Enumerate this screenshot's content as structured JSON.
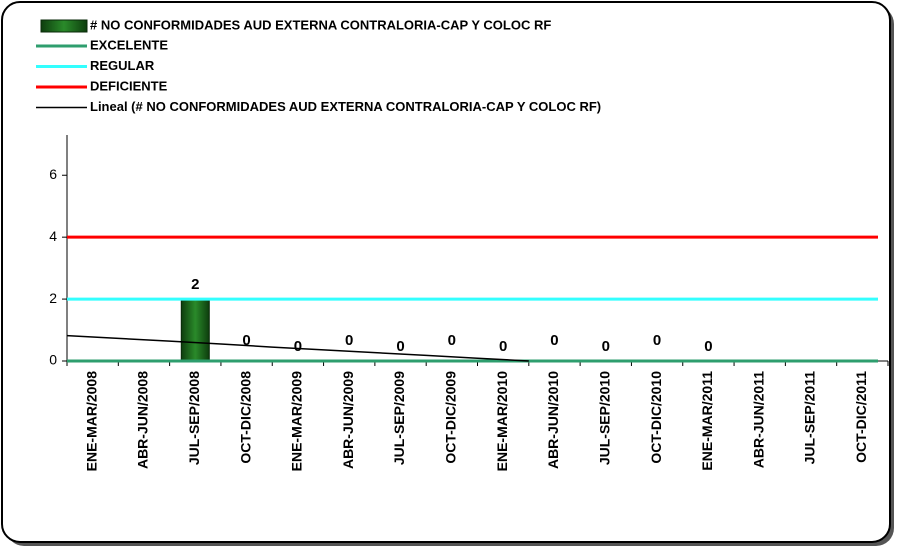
{
  "chart_data": {
    "type": "bar",
    "categories": [
      "ENE-MAR/2008",
      "ABR-JUN/2008",
      "JUL-SEP/2008",
      "OCT-DIC/2008",
      "ENE-MAR/2009",
      "ABR-JUN/2009",
      "JUL-SEP/2009",
      "OCT-DIC/2009",
      "ENE-MAR/2010",
      "ABR-JUN/2010",
      "JUL-SEP/2010",
      "OCT-DIC/2010",
      "ENE-MAR/2011",
      "ABR-JUN/2011",
      "JUL-SEP/2011",
      "OCT-DIC/2011"
    ],
    "bar_series": {
      "name": "# NO CONFORMIDADES AUD EXTERNA CONTRALORIA-CAP Y COLOC RF",
      "color": "#1f6b1f",
      "values": [
        null,
        null,
        2,
        0,
        0,
        0,
        0,
        0,
        0,
        0,
        0,
        0,
        0,
        null,
        null,
        null
      ]
    },
    "series": [
      {
        "name": "EXCELENTE",
        "color": "#2e9e6e",
        "values": [
          0,
          0,
          0,
          0,
          0,
          0,
          0,
          0,
          0,
          0,
          0,
          0,
          0,
          0,
          0,
          0
        ]
      },
      {
        "name": "REGULAR",
        "color": "#33ffff",
        "values": [
          2,
          2,
          2,
          2,
          2,
          2,
          2,
          2,
          2,
          2,
          2,
          2,
          2,
          2,
          2,
          2
        ]
      },
      {
        "name": "DEFICIENTE",
        "color": "#ff0000",
        "values": [
          4,
          4,
          4,
          4,
          4,
          4,
          4,
          4,
          4,
          4,
          4,
          4,
          4,
          4,
          4,
          4
        ]
      },
      {
        "name": "Lineal (# NO CONFORMIDADES AUD EXTERNA CONTRALORIA-CAP Y COLOC RF)",
        "color": "#000000",
        "values": [
          0.82,
          0.73,
          0.64,
          0.55,
          0.45,
          0.36,
          0.27,
          0.18,
          0.09,
          0,
          null,
          null,
          null,
          null,
          null,
          null
        ]
      }
    ],
    "ylim": [
      0,
      7.3
    ],
    "yticks": [
      0,
      2,
      4,
      6
    ]
  }
}
